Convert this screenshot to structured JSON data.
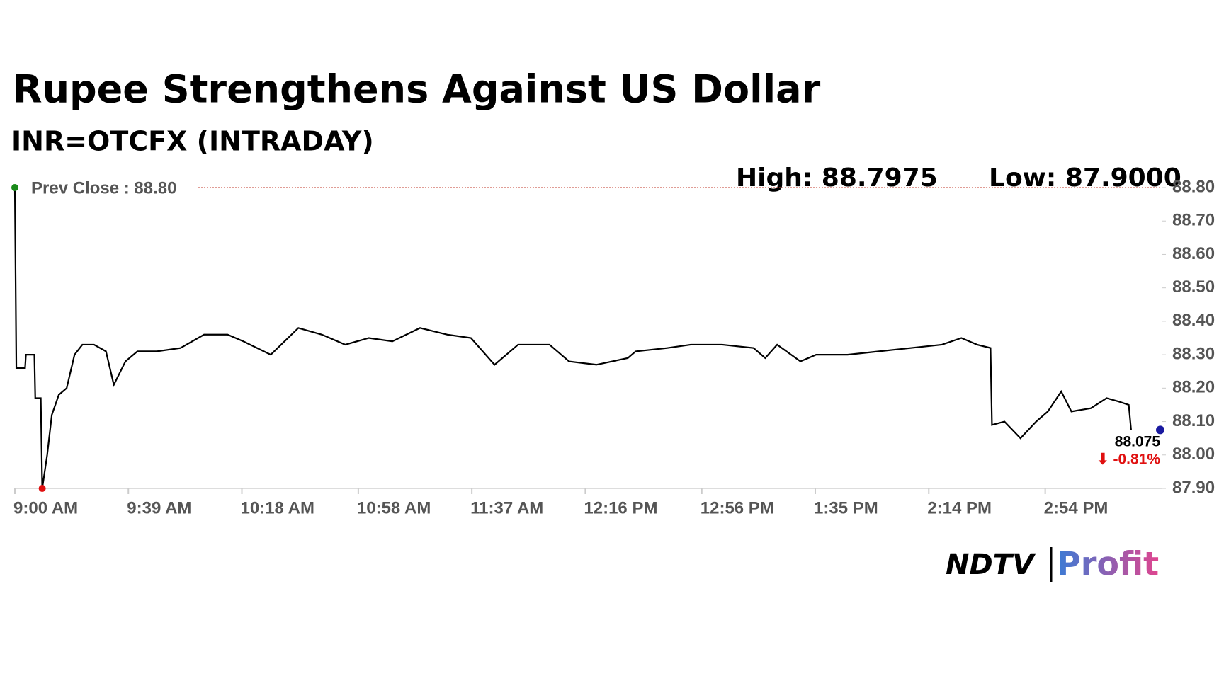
{
  "chart_data": {
    "type": "line",
    "title": "Rupee Strengthens Against US Dollar",
    "subtitle": "INR=OTCFX (INTRADAY)",
    "high_label": "High: 88.7975",
    "low_label": "Low: 87.9000",
    "prev_close": {
      "value": 88.8,
      "label": "Prev Close : 88.80"
    },
    "last_value_label": "88.075",
    "change_label": "⬇ -0.81%",
    "x": [
      540,
      540.5,
      543.5,
      543.8,
      546.7,
      547.0,
      548.9,
      549.4,
      551.1,
      552.7,
      555.1,
      557.8,
      560.5,
      563.2,
      567.2,
      571.3,
      574.0,
      578.0,
      582.1,
      588.8,
      596.9,
      605.0,
      613.1,
      618.5,
      627.9,
      637.4,
      645.5,
      653.5,
      661.6,
      669.7,
      679.2,
      688.6,
      696.7,
      704.8,
      712.9,
      723.7,
      730.4,
      739.8,
      750.6,
      753.3,
      764.1,
      772.2,
      783.0,
      793.8,
      797.8,
      801.9,
      809.9,
      815.3,
      826.1,
      836.9,
      847.7,
      858.5,
      865.2,
      870.6,
      875.2,
      875.7,
      880.0,
      885.5,
      890.9,
      894.9,
      899.5,
      903.0,
      909.7,
      915.1,
      919.2,
      922.7,
      923.5
    ],
    "series": [
      {
        "name": "INR=OTCFX",
        "color": "#000000",
        "values": [
          88.8,
          88.26,
          88.26,
          88.3,
          88.3,
          88.17,
          88.17,
          87.9,
          88.0,
          88.12,
          88.18,
          88.2,
          88.3,
          88.33,
          88.33,
          88.31,
          88.21,
          88.28,
          88.31,
          88.31,
          88.32,
          88.36,
          88.36,
          88.34,
          88.3,
          88.38,
          88.36,
          88.33,
          88.35,
          88.34,
          88.38,
          88.36,
          88.35,
          88.27,
          88.33,
          88.33,
          88.28,
          88.27,
          88.29,
          88.31,
          88.32,
          88.33,
          88.33,
          88.32,
          88.29,
          88.33,
          88.28,
          88.3,
          88.3,
          88.31,
          88.32,
          88.33,
          88.35,
          88.33,
          88.32,
          88.09,
          88.1,
          88.05,
          88.1,
          88.13,
          88.19,
          88.13,
          88.14,
          88.17,
          88.16,
          88.15,
          88.075
        ]
      }
    ],
    "xlim": [
      540,
      934
    ],
    "xticks": [
      {
        "value": 540,
        "label": "9:00 AM"
      },
      {
        "value": 579,
        "label": "9:39 AM"
      },
      {
        "value": 618,
        "label": "10:18 AM"
      },
      {
        "value": 658,
        "label": "10:58 AM"
      },
      {
        "value": 697,
        "label": "11:37 AM"
      },
      {
        "value": 736,
        "label": "12:16 PM"
      },
      {
        "value": 776,
        "label": "12:56 PM"
      },
      {
        "value": 815,
        "label": "1:35 PM"
      },
      {
        "value": 854,
        "label": "2:14 PM"
      },
      {
        "value": 894,
        "label": "2:54 PM"
      }
    ],
    "ylim": [
      87.9,
      88.8
    ],
    "yticks": [
      {
        "value": 87.9,
        "label": "87.90"
      },
      {
        "value": 88.0,
        "label": "88.00"
      },
      {
        "value": 88.1,
        "label": "88.10"
      },
      {
        "value": 88.2,
        "label": "88.20"
      },
      {
        "value": 88.3,
        "label": "88.30"
      },
      {
        "value": 88.4,
        "label": "88.40"
      },
      {
        "value": 88.5,
        "label": "88.50"
      },
      {
        "value": 88.6,
        "label": "88.60"
      },
      {
        "value": 88.7,
        "label": "88.70"
      },
      {
        "value": 88.8,
        "label": "88.80"
      }
    ],
    "logo": {
      "left": "NDTV",
      "right": "Profit"
    }
  }
}
